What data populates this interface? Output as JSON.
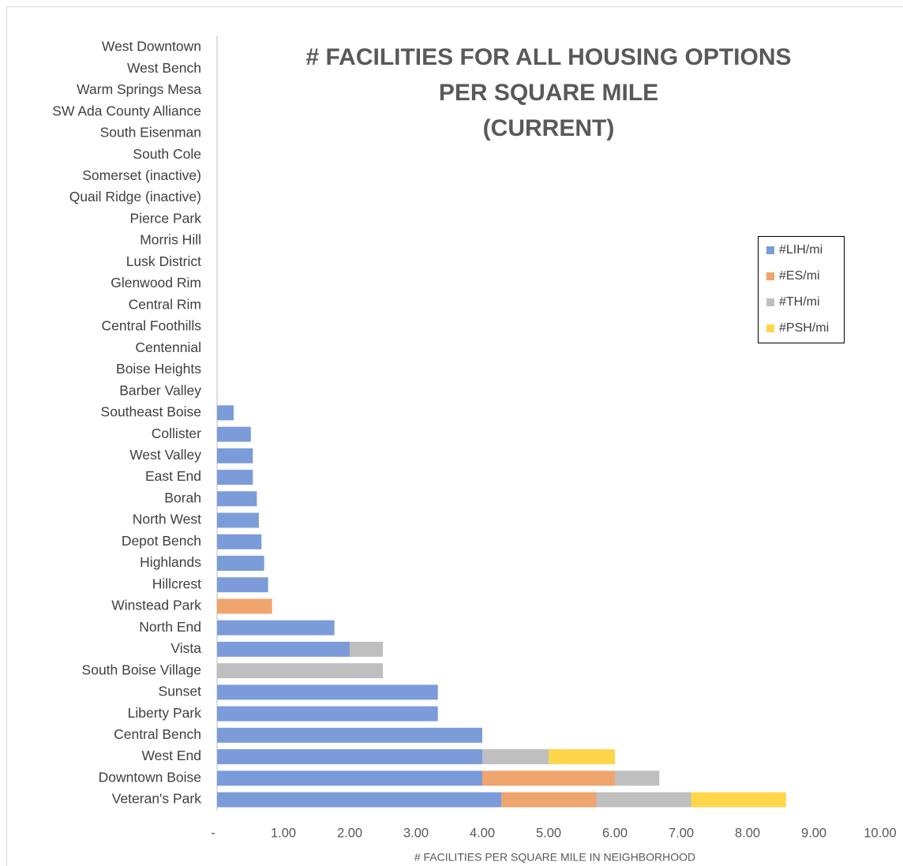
{
  "chart_data": {
    "type": "stacked_bar_horizontal",
    "title": [
      "# FACILITIES FOR ALL HOUSING OPTIONS",
      "PER SQUARE MILE",
      "(CURRENT)"
    ],
    "x_label": "# FACILITIES PER SQUARE MILE IN NEIGHBORHOOD",
    "categories": [
      "West Downtown",
      "West Bench",
      "Warm Springs Mesa",
      "SW Ada County Alliance",
      "South Eisenman",
      "South Cole",
      "Somerset (inactive)",
      "Quail Ridge (inactive)",
      "Pierce Park",
      "Morris Hill",
      "Lusk District",
      "Glenwood Rim",
      "Central Rim",
      "Central Foothills",
      "Centennial",
      "Boise Heights",
      "Barber Valley",
      "Southeast Boise",
      "Collister",
      "West Valley",
      "East End",
      "Borah",
      "North West",
      "Depot Bench",
      "Highlands",
      "Hillcrest",
      "Winstead Park",
      "North End",
      "Vista",
      "South Boise Village",
      "Sunset",
      "Liberty Park",
      "Central Bench",
      "West End",
      "Downtown Boise",
      "Veteran's Park"
    ],
    "series": [
      {
        "name": "#LIH/mi",
        "color": "#7b9cd9",
        "values": [
          0,
          0,
          0,
          0,
          0,
          0,
          0,
          0,
          0,
          0,
          0,
          0,
          0,
          0,
          0,
          0,
          0,
          0.25,
          0.51,
          0.54,
          0.54,
          0.6,
          0.63,
          0.67,
          0.71,
          0.77,
          0,
          1.77,
          2.0,
          0,
          3.33,
          3.33,
          4.0,
          4.0,
          4.0,
          4.29
        ]
      },
      {
        "name": "#ES/mi",
        "color": "#f0a46e",
        "values": [
          0,
          0,
          0,
          0,
          0,
          0,
          0,
          0,
          0,
          0,
          0,
          0,
          0,
          0,
          0,
          0,
          0,
          0,
          0,
          0,
          0,
          0,
          0,
          0,
          0,
          0,
          0.83,
          0,
          0,
          0,
          0,
          0,
          0,
          0,
          2.0,
          1.43
        ]
      },
      {
        "name": "#TH/mi",
        "color": "#bfbfbf",
        "values": [
          0,
          0,
          0,
          0,
          0,
          0,
          0,
          0,
          0,
          0,
          0,
          0,
          0,
          0,
          0,
          0,
          0,
          0,
          0,
          0,
          0,
          0,
          0,
          0,
          0,
          0,
          0,
          0,
          0.5,
          2.5,
          0,
          0,
          0,
          1.0,
          0.67,
          1.43
        ]
      },
      {
        "name": "#PSH/mi",
        "color": "#ffd54a",
        "values": [
          0,
          0,
          0,
          0,
          0,
          0,
          0,
          0,
          0,
          0,
          0,
          0,
          0,
          0,
          0,
          0,
          0,
          0,
          0,
          0,
          0,
          0,
          0,
          0,
          0,
          0,
          0,
          0,
          0,
          0,
          0,
          0,
          0,
          1.0,
          0,
          1.43
        ]
      }
    ],
    "xlim": [
      0,
      10
    ],
    "xticks": [
      {
        "value": 0,
        "label": "-"
      },
      {
        "value": 1,
        "label": "1.00"
      },
      {
        "value": 2,
        "label": "2.00"
      },
      {
        "value": 3,
        "label": "3.00"
      },
      {
        "value": 4,
        "label": "4.00"
      },
      {
        "value": 5,
        "label": "5.00"
      },
      {
        "value": 6,
        "label": "6.00"
      },
      {
        "value": 7,
        "label": "7.00"
      },
      {
        "value": 8,
        "label": "8.00"
      },
      {
        "value": 9,
        "label": "9.00"
      },
      {
        "value": 10,
        "label": "10.00"
      }
    ],
    "legend": "right"
  }
}
